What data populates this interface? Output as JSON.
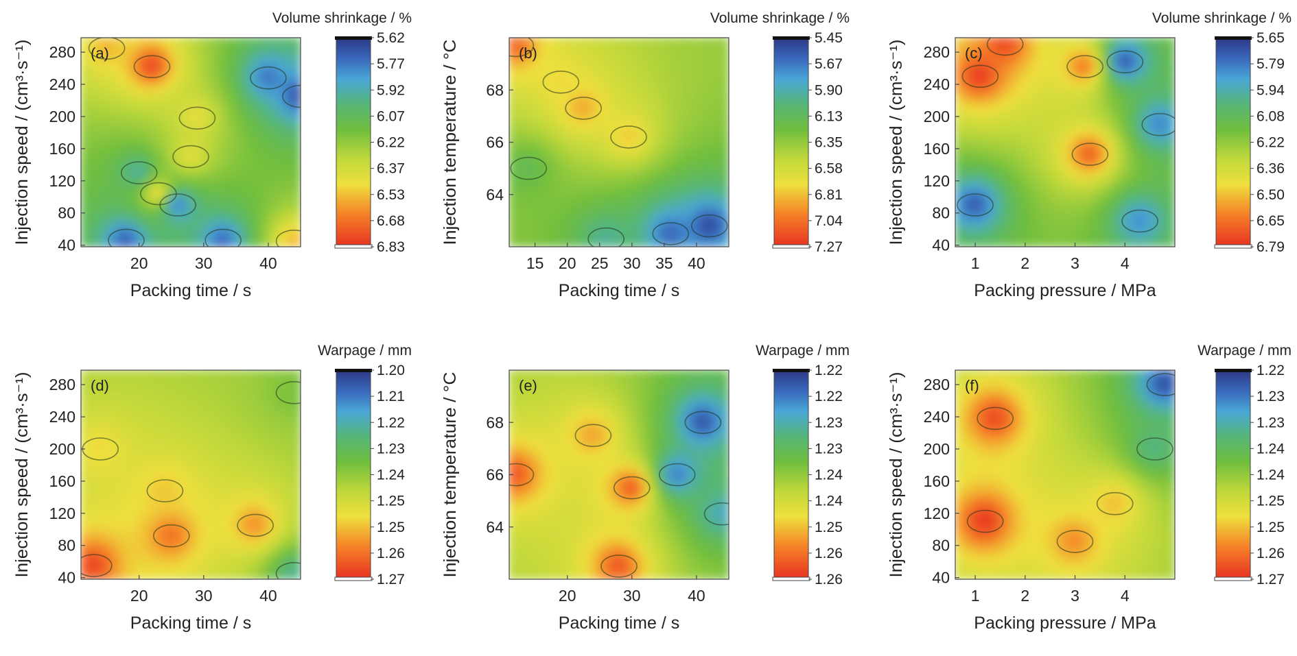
{
  "chart_data": [
    {
      "type": "heatmap",
      "panel_label": "(a)",
      "xlabel": "Packing time / s",
      "ylabel": "Injection speed / (cm³·s⁻¹)",
      "colorbar_title": "Volume shrinkage / %",
      "x_ticks": [
        20,
        30,
        40
      ],
      "y_ticks": [
        40,
        80,
        120,
        160,
        200,
        240,
        280
      ],
      "xlim": [
        11,
        45
      ],
      "ylim": [
        38,
        298
      ],
      "colorbar_ticks": [
        "5.62",
        "5.77",
        "5.92",
        "6.07",
        "6.22",
        "6.37",
        "6.53",
        "6.68",
        "6.83"
      ],
      "colorbar_range": [
        5.62,
        6.83
      ],
      "hotspots": [
        {
          "x": 22,
          "y": 262,
          "value": 6.8
        },
        {
          "x": 15,
          "y": 285,
          "value": 6.55
        },
        {
          "x": 44,
          "y": 45,
          "value": 6.55
        },
        {
          "x": 28,
          "y": 150,
          "value": 6.45
        },
        {
          "x": 29,
          "y": 198,
          "value": 6.45
        },
        {
          "x": 23,
          "y": 104,
          "value": 6.5
        },
        {
          "x": 40,
          "y": 248,
          "value": 5.75
        },
        {
          "x": 45,
          "y": 225,
          "value": 5.65
        },
        {
          "x": 26,
          "y": 90,
          "value": 5.75
        },
        {
          "x": 18,
          "y": 46,
          "value": 5.7
        },
        {
          "x": 33,
          "y": 46,
          "value": 5.72
        },
        {
          "x": 20,
          "y": 130,
          "value": 5.92
        }
      ]
    },
    {
      "type": "heatmap",
      "panel_label": "(b)",
      "xlabel": "Packing time / s",
      "ylabel": "Injection temperature / °C",
      "colorbar_title": "Volume shrinkage / %",
      "x_ticks": [
        15,
        20,
        25,
        30,
        35,
        40
      ],
      "y_ticks": [
        64,
        66,
        68
      ],
      "xlim": [
        11,
        45
      ],
      "ylim": [
        62,
        70
      ],
      "colorbar_ticks": [
        "5.45",
        "5.67",
        "5.90",
        "6.13",
        "6.35",
        "6.58",
        "6.81",
        "7.04",
        "7.27"
      ],
      "colorbar_range": [
        5.45,
        7.27
      ],
      "hotspots": [
        {
          "x": 12,
          "y": 69.7,
          "value": 7.1
        },
        {
          "x": 22.5,
          "y": 67.3,
          "value": 6.9
        },
        {
          "x": 29.5,
          "y": 66.2,
          "value": 6.8
        },
        {
          "x": 19,
          "y": 68.3,
          "value": 6.75
        },
        {
          "x": 42,
          "y": 62.8,
          "value": 5.5
        },
        {
          "x": 36,
          "y": 62.5,
          "value": 5.6
        },
        {
          "x": 26,
          "y": 62.3,
          "value": 5.95
        },
        {
          "x": 14,
          "y": 65,
          "value": 6.15
        }
      ]
    },
    {
      "type": "heatmap",
      "panel_label": "(c)",
      "xlabel": "Packing pressure / MPa",
      "ylabel": "Injection speed / (cm³·s⁻¹)",
      "colorbar_title": "Volume shrinkage / %",
      "x_ticks": [
        1,
        2,
        3,
        4
      ],
      "y_ticks": [
        40,
        80,
        120,
        160,
        200,
        240,
        280
      ],
      "xlim": [
        0.6,
        5.0
      ],
      "ylim": [
        38,
        298
      ],
      "colorbar_ticks": [
        "5.65",
        "5.79",
        "5.94",
        "6.08",
        "6.22",
        "6.36",
        "6.50",
        "6.65",
        "6.79"
      ],
      "colorbar_range": [
        5.65,
        6.79
      ],
      "hotspots": [
        {
          "x": 1.1,
          "y": 250,
          "value": 6.78
        },
        {
          "x": 1.6,
          "y": 290,
          "value": 6.75
        },
        {
          "x": 3.3,
          "y": 153,
          "value": 6.7
        },
        {
          "x": 3.2,
          "y": 262,
          "value": 6.65
        },
        {
          "x": 1.0,
          "y": 90,
          "value": 5.72
        },
        {
          "x": 4.0,
          "y": 268,
          "value": 5.7
        },
        {
          "x": 4.3,
          "y": 70,
          "value": 5.82
        },
        {
          "x": 4.7,
          "y": 190,
          "value": 5.8
        }
      ]
    },
    {
      "type": "heatmap",
      "panel_label": "(d)",
      "xlabel": "Packing time / s",
      "ylabel": "Injection speed / (cm³·s⁻¹)",
      "colorbar_title": "Warpage / mm",
      "x_ticks": [
        20,
        30,
        40
      ],
      "y_ticks": [
        40,
        80,
        120,
        160,
        200,
        240,
        280
      ],
      "xlim": [
        11,
        45
      ],
      "ylim": [
        38,
        298
      ],
      "colorbar_ticks": [
        "1.20",
        "1.21",
        "1.22",
        "1.23",
        "1.24",
        "1.25",
        "1.25",
        "1.26",
        "1.27"
      ],
      "colorbar_range": [
        1.2,
        1.27
      ],
      "hotspots": [
        {
          "x": 13,
          "y": 55,
          "value": 1.268
        },
        {
          "x": 25,
          "y": 92,
          "value": 1.262
        },
        {
          "x": 38,
          "y": 105,
          "value": 1.258
        },
        {
          "x": 24,
          "y": 148,
          "value": 1.252
        },
        {
          "x": 14,
          "y": 200,
          "value": 1.25
        },
        {
          "x": 44,
          "y": 270,
          "value": 1.232
        },
        {
          "x": 44,
          "y": 45,
          "value": 1.22
        }
      ]
    },
    {
      "type": "heatmap",
      "panel_label": "(e)",
      "xlabel": "Packing time / s",
      "ylabel": "Injection temperature / °C",
      "colorbar_title": "Warpage / mm",
      "x_ticks": [
        20,
        30,
        40
      ],
      "y_ticks": [
        64,
        66,
        68
      ],
      "xlim": [
        11,
        45
      ],
      "ylim": [
        62,
        70
      ],
      "colorbar_ticks": [
        "1.22",
        "1.22",
        "1.23",
        "1.23",
        "1.24",
        "1.24",
        "1.25",
        "1.26",
        "1.26"
      ],
      "colorbar_range": [
        1.22,
        1.265
      ],
      "hotspots": [
        {
          "x": 12,
          "y": 66,
          "value": 1.262
        },
        {
          "x": 28,
          "y": 62.5,
          "value": 1.262
        },
        {
          "x": 30,
          "y": 65.5,
          "value": 1.262
        },
        {
          "x": 24,
          "y": 67.5,
          "value": 1.256
        },
        {
          "x": 41,
          "y": 68,
          "value": 1.222
        },
        {
          "x": 37,
          "y": 66,
          "value": 1.225
        },
        {
          "x": 44,
          "y": 64.5,
          "value": 1.23
        }
      ]
    },
    {
      "type": "heatmap",
      "panel_label": "(f)",
      "xlabel": "Packing pressure / MPa",
      "ylabel": "Injection speed / (cm³·s⁻¹)",
      "colorbar_title": "Warpage / mm",
      "x_ticks": [
        1,
        2,
        3,
        4
      ],
      "y_ticks": [
        40,
        80,
        120,
        160,
        200,
        240,
        280
      ],
      "xlim": [
        0.6,
        5.0
      ],
      "ylim": [
        38,
        298
      ],
      "colorbar_ticks": [
        "1.22",
        "1.23",
        "1.23",
        "1.24",
        "1.24",
        "1.25",
        "1.25",
        "1.26",
        "1.27"
      ],
      "colorbar_range": [
        1.22,
        1.27
      ],
      "hotspots": [
        {
          "x": 1.2,
          "y": 110,
          "value": 1.27
        },
        {
          "x": 1.4,
          "y": 238,
          "value": 1.268
        },
        {
          "x": 3.0,
          "y": 85,
          "value": 1.262
        },
        {
          "x": 3.8,
          "y": 132,
          "value": 1.258
        },
        {
          "x": 4.8,
          "y": 280,
          "value": 1.222
        },
        {
          "x": 4.6,
          "y": 200,
          "value": 1.235
        }
      ]
    }
  ]
}
